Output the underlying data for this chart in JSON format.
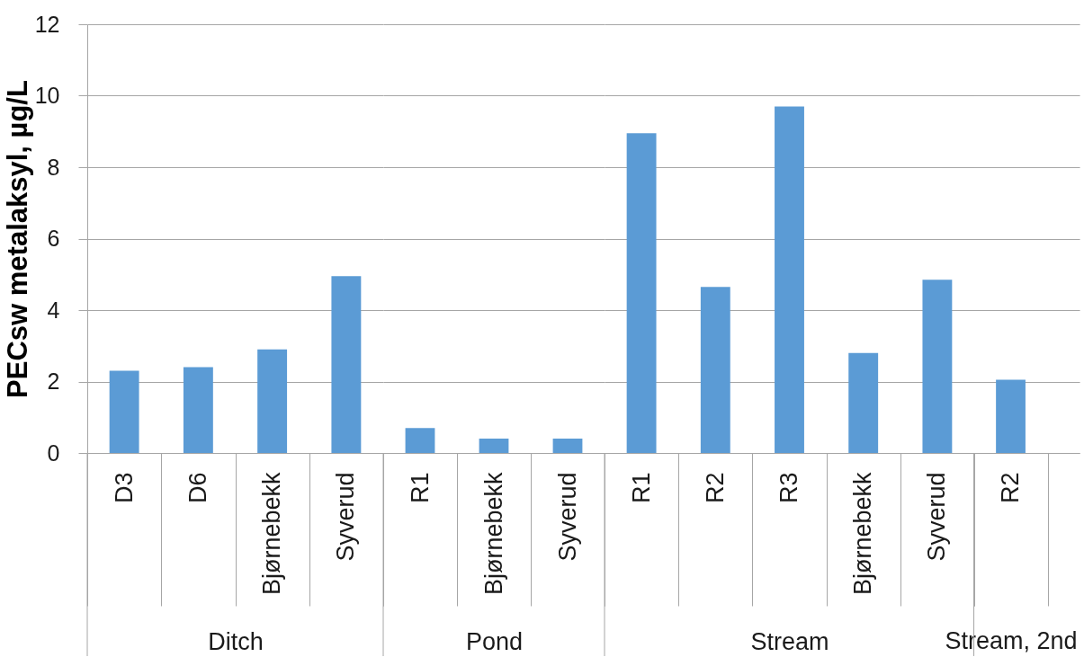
{
  "chart_data": [
    {
      "type": "bar",
      "xlabel": "Ditch",
      "ylabel": "PECsw metalaksyl, µg/L",
      "categories": [
        "D3",
        "D6",
        "Bjørnebekk",
        "Syverud"
      ],
      "values": [
        2.3,
        2.4,
        2.9,
        4.95
      ],
      "color": "#5b9bd5",
      "ylim": [
        0,
        12
      ],
      "yticks": [
        0,
        2,
        4,
        6,
        8,
        10,
        12
      ],
      "grid": "y"
    },
    {
      "type": "bar",
      "xlabel": "Pond",
      "categories": [
        "R1",
        "Bjørnebekk",
        "Syverud"
      ],
      "values": [
        0.7,
        0.4,
        0.4
      ],
      "color": "#5b9bd5",
      "ylim": [
        0,
        12
      ],
      "yticks": [
        0,
        2,
        4,
        6,
        8,
        10,
        12
      ],
      "grid": "y",
      "tick_labels": "x"
    },
    {
      "type": "bar",
      "xlabel": "Stream",
      "categories": [
        "R1",
        "R2",
        "R3",
        "Bjørnebekk",
        "Syverud"
      ],
      "values": [
        8.95,
        4.65,
        9.7,
        2.8,
        4.85
      ],
      "color": "#5b9bd5",
      "ylim": [
        0,
        12
      ],
      "yticks": [
        0,
        2,
        4,
        6,
        8,
        10,
        12
      ],
      "grid": "y",
      "tick_labels": "x"
    },
    {
      "type": "bar",
      "xlabel": "Stream, 2nd",
      "categories": [
        "R2"
      ],
      "values": [
        2.05
      ],
      "color": "#5b9bd5",
      "ylim": [
        0,
        12
      ],
      "yticks": [
        0,
        2,
        4,
        6,
        8,
        10,
        12
      ],
      "grid": "y",
      "tick_labels": "x"
    }
  ]
}
